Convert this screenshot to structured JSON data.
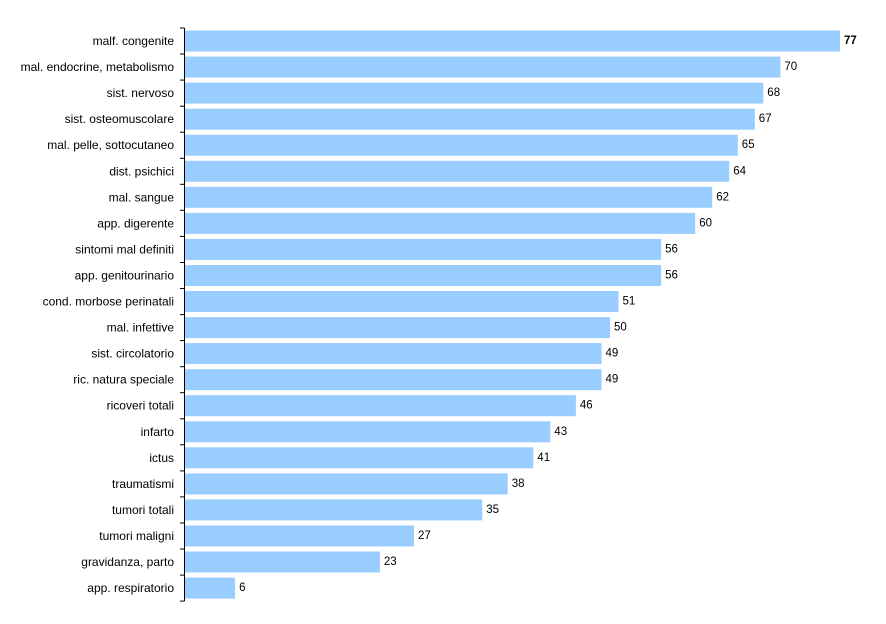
{
  "chart_data": {
    "type": "bar",
    "orientation": "horizontal",
    "categories": [
      "malf. congenite",
      "mal. endocrine, metabolismo",
      "sist. nervoso",
      "sist. osteomuscolare",
      "mal. pelle, sottocutaneo",
      "dist. psichici",
      "mal. sangue",
      "app. digerente",
      "sintomi mal definiti",
      "app. genitourinario",
      "cond. morbose perinatali",
      "mal. infettive",
      "sist. circolatorio",
      "ric. natura speciale",
      "ricoveri totali",
      "infarto",
      "ictus",
      "traumatismi",
      "tumori totali",
      "tumori maligni",
      "gravidanza, parto",
      "app. respiratorio"
    ],
    "values": [
      77,
      70,
      68,
      67,
      65,
      64,
      62,
      60,
      56,
      56,
      51,
      50,
      49,
      49,
      46,
      43,
      41,
      38,
      35,
      27,
      23,
      6
    ],
    "value_labels": [
      "77",
      "70",
      "68",
      "67",
      "65",
      "64",
      "62",
      "60",
      "56",
      "56",
      "51",
      "50",
      "49",
      "49",
      "46",
      "43",
      "41",
      "38",
      "35",
      "27",
      "23",
      "6"
    ],
    "bold_labels": [
      "77"
    ],
    "xlim": [
      0,
      77
    ],
    "grid": false,
    "colors": {
      "bar": "#99ccff",
      "axis": "#000000"
    },
    "title": "",
    "xlabel": "",
    "ylabel": ""
  }
}
